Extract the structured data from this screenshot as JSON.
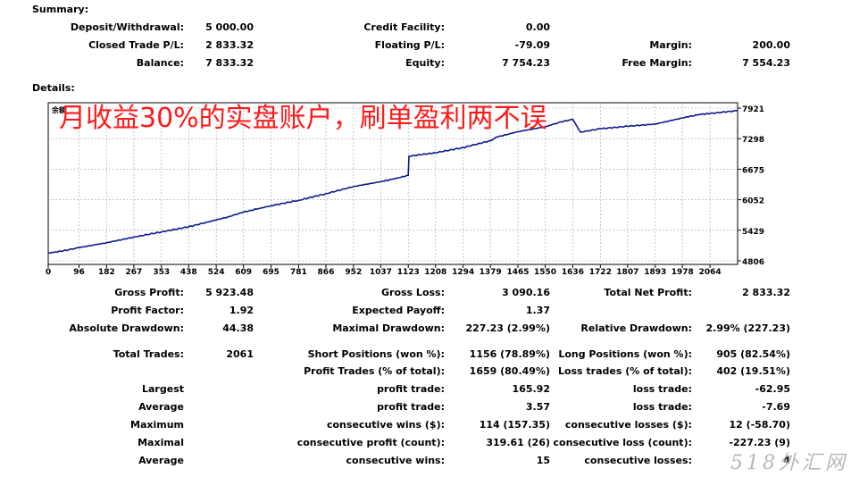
{
  "summary": {
    "title": "Summary:",
    "rows": [
      [
        {
          "label": "Deposit/Withdrawal:",
          "value": "5 000.00"
        },
        {
          "label": "Credit Facility:",
          "value": "0.00"
        },
        {
          "label": "",
          "value": ""
        }
      ],
      [
        {
          "label": "Closed Trade P/L:",
          "value": "2 833.32"
        },
        {
          "label": "Floating P/L:",
          "value": "-79.09"
        },
        {
          "label": "Margin:",
          "value": "200.00"
        }
      ],
      [
        {
          "label": "Balance:",
          "value": "7 833.32"
        },
        {
          "label": "Equity:",
          "value": "7 754.23"
        },
        {
          "label": "Free Margin:",
          "value": "7 554.23"
        }
      ]
    ]
  },
  "details": {
    "title": "Details:"
  },
  "chart_data": {
    "type": "line",
    "title": "",
    "legend_text": "余额",
    "xlabel": "",
    "ylabel": "",
    "x_ticks": [
      "0",
      "96",
      "182",
      "267",
      "353",
      "438",
      "524",
      "609",
      "695",
      "781",
      "866",
      "952",
      "1037",
      "1123",
      "1208",
      "1294",
      "1379",
      "1465",
      "1550",
      "1636",
      "1722",
      "1807",
      "1893",
      "1978",
      "2064"
    ],
    "y_ticks": [
      "7921",
      "7298",
      "6675",
      "6052",
      "5429",
      "4806"
    ],
    "xlim": [
      0,
      2150
    ],
    "ylim": [
      4806,
      7921
    ],
    "grid": true,
    "line_color": "#0a1a8a",
    "series": [
      {
        "name": "",
        "x": [
          0,
          40,
          96,
          182,
          267,
          353,
          438,
          524,
          560,
          609,
          650,
          695,
          781,
          866,
          952,
          1037,
          1100,
          1123,
          1125,
          1208,
          1294,
          1379,
          1400,
          1465,
          1550,
          1600,
          1636,
          1660,
          1722,
          1807,
          1893,
          1978,
          2030,
          2064,
          2150
        ],
        "y": [
          4965,
          5000,
          5075,
          5175,
          5290,
          5395,
          5500,
          5640,
          5700,
          5800,
          5860,
          5930,
          6040,
          6175,
          6320,
          6420,
          6510,
          6550,
          6940,
          7010,
          7115,
          7255,
          7330,
          7440,
          7540,
          7640,
          7690,
          7430,
          7500,
          7550,
          7595,
          7720,
          7790,
          7810,
          7870
        ]
      }
    ]
  },
  "overlay_text": "月收益30%的实盘账户，刷单盈利两不误",
  "stats": {
    "rows": [
      [
        {
          "label": "Gross Profit:",
          "value": "5 923.48"
        },
        {
          "label": "Gross Loss:",
          "value": "3 090.16"
        },
        {
          "label": "Total Net Profit:",
          "value": "2 833.32"
        }
      ],
      [
        {
          "label": "Profit Factor:",
          "value": "1.92"
        },
        {
          "label": "Expected Payoff:",
          "value": "1.37"
        },
        {
          "label": "",
          "value": ""
        }
      ],
      [
        {
          "label": "Absolute Drawdown:",
          "value": "44.38"
        },
        {
          "label": "Maximal Drawdown:",
          "value": "227.23 (2.99%)"
        },
        {
          "label": "Relative Drawdown:",
          "value": "2.99% (227.23)"
        }
      ],
      [
        {
          "label": "Total Trades:",
          "value": "2061"
        },
        {
          "label": "Short Positions (won %):",
          "value": "1156 (78.89%)"
        },
        {
          "label": "Long Positions (won %):",
          "value": "905 (82.54%)"
        }
      ],
      [
        {
          "label": "",
          "value": ""
        },
        {
          "label": "Profit Trades (% of total):",
          "value": "1659 (80.49%)"
        },
        {
          "label": "Loss trades (% of total):",
          "value": "402 (19.51%)"
        }
      ],
      [
        {
          "label": "Largest",
          "value": ""
        },
        {
          "label": "profit trade:",
          "value": "165.92"
        },
        {
          "label": "loss trade:",
          "value": "-62.95"
        }
      ],
      [
        {
          "label": "Average",
          "value": ""
        },
        {
          "label": "profit trade:",
          "value": "3.57"
        },
        {
          "label": "loss trade:",
          "value": "-7.69"
        }
      ],
      [
        {
          "label": "Maximum",
          "value": ""
        },
        {
          "label": "consecutive wins ($):",
          "value": "114 (157.35)"
        },
        {
          "label": "consecutive losses ($):",
          "value": "12 (-58.70)"
        }
      ],
      [
        {
          "label": "Maximal",
          "value": ""
        },
        {
          "label": "consecutive profit (count):",
          "value": "319.61 (26)"
        },
        {
          "label": "consecutive loss (count):",
          "value": "-227.23 (9)"
        }
      ],
      [
        {
          "label": "Average",
          "value": ""
        },
        {
          "label": "consecutive wins:",
          "value": "15"
        },
        {
          "label": "consecutive losses:",
          "value": "4"
        }
      ]
    ]
  },
  "watermark": "518外汇网"
}
